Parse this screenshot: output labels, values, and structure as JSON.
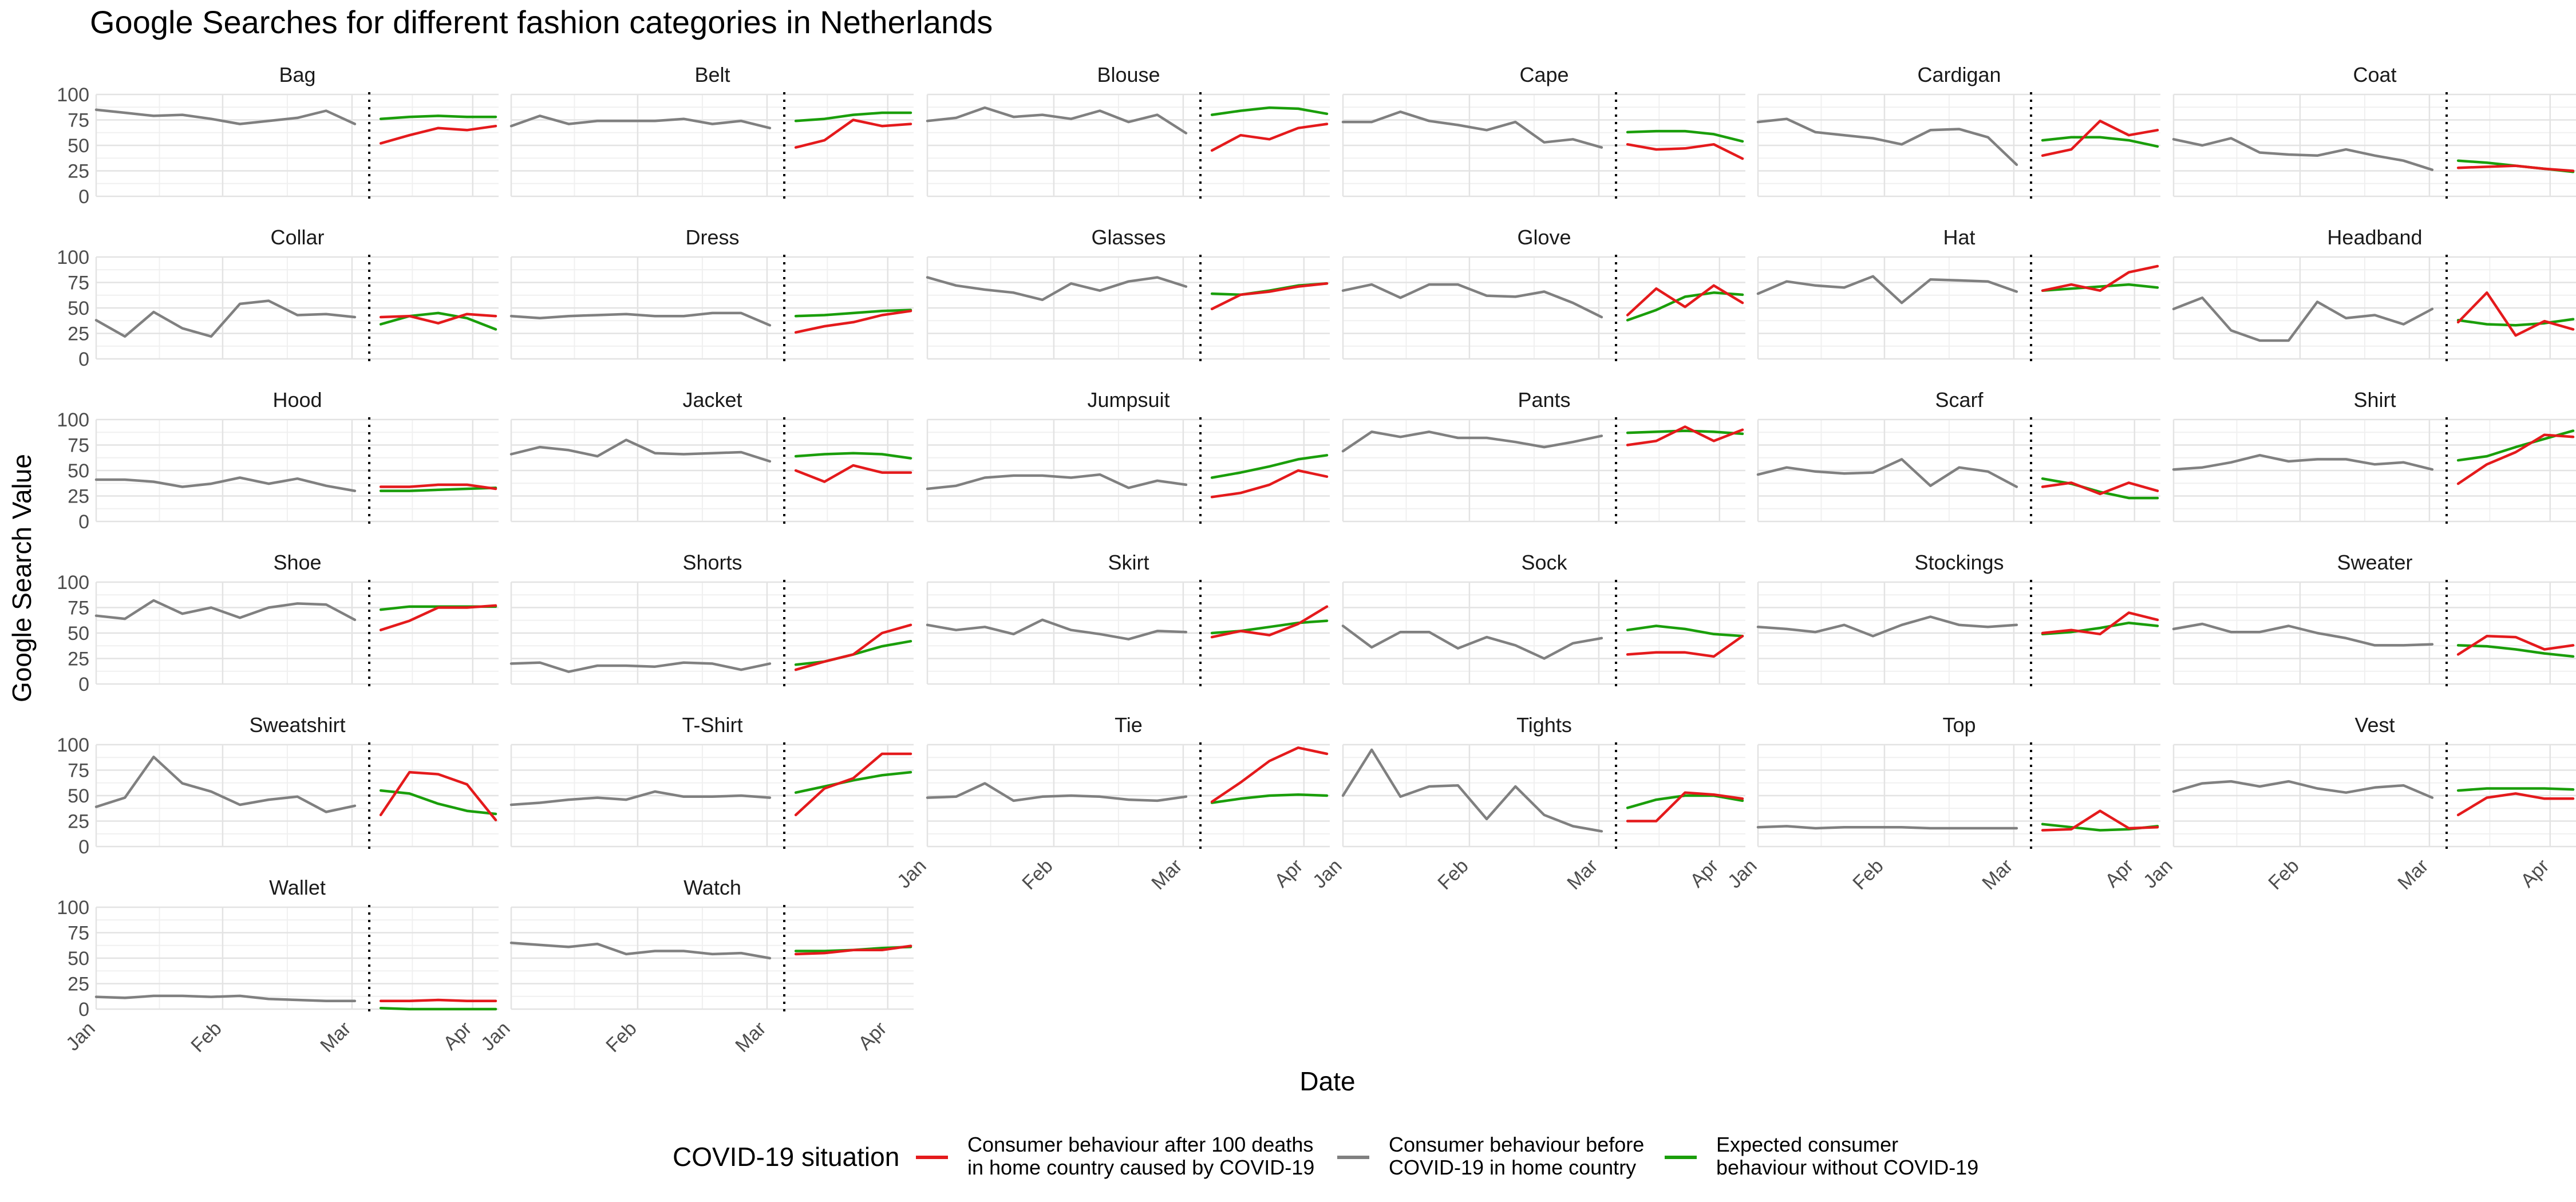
{
  "chart_data": {
    "type": "line",
    "title": "Google Searches for different fashion categories in Netherlands",
    "xlabel": "Date",
    "ylabel": "Google Search Value",
    "ylim": [
      0,
      100
    ],
    "y_ticks": [
      0,
      25,
      50,
      75,
      100
    ],
    "x_ticks": [
      "Jan",
      "Feb",
      "Mar",
      "Apr"
    ],
    "x_unit": "week",
    "x_range": [
      0,
      14
    ],
    "tick_positions": [
      0,
      4.4,
      8.9,
      13.1
    ],
    "divider_x": 9.5,
    "grid": true,
    "legend": {
      "title": "COVID-19 situation",
      "placement": "bottom",
      "entries": [
        {
          "key": "after",
          "label_lines": [
            "Consumer behaviour after 100 deaths",
            "in home country caused by COVID-19"
          ],
          "color": "#E41A1C"
        },
        {
          "key": "before",
          "label_lines": [
            "Consumer behaviour before",
            "COVID-19 in home country"
          ],
          "color": "#808080"
        },
        {
          "key": "expected",
          "label_lines": [
            "Expected consumer",
            "behaviour without COVID-19"
          ],
          "color": "#1A9E0A"
        }
      ]
    },
    "before_x": [
      0,
      1,
      2,
      3,
      4,
      5,
      6,
      7,
      8,
      9
    ],
    "after_x": [
      9.9,
      10.9,
      11.9,
      12.9,
      13.9
    ],
    "panels": [
      {
        "name": "Bag",
        "before": [
          85,
          82,
          79,
          80,
          76,
          71,
          74,
          77,
          84,
          71
        ],
        "after": [
          52,
          60,
          67,
          65,
          69
        ],
        "expected": [
          76,
          78,
          79,
          78,
          78
        ]
      },
      {
        "name": "Belt",
        "before": [
          69,
          79,
          71,
          74,
          74,
          74,
          76,
          71,
          74,
          67
        ],
        "after": [
          48,
          55,
          75,
          69,
          71
        ],
        "expected": [
          74,
          76,
          80,
          82,
          82
        ]
      },
      {
        "name": "Blouse",
        "before": [
          74,
          77,
          87,
          78,
          80,
          76,
          84,
          73,
          80,
          62
        ],
        "after": [
          45,
          60,
          56,
          67,
          71
        ],
        "expected": [
          80,
          84,
          87,
          86,
          81
        ]
      },
      {
        "name": "Cape",
        "before": [
          73,
          73,
          83,
          74,
          70,
          65,
          73,
          53,
          56,
          48
        ],
        "after": [
          51,
          46,
          47,
          51,
          37
        ],
        "expected": [
          63,
          64,
          64,
          61,
          54
        ]
      },
      {
        "name": "Cardigan",
        "before": [
          73,
          76,
          63,
          60,
          57,
          51,
          65,
          66,
          58,
          31
        ],
        "after": [
          40,
          46,
          74,
          60,
          65
        ],
        "expected": [
          55,
          58,
          58,
          55,
          49
        ]
      },
      {
        "name": "Coat",
        "before": [
          56,
          50,
          57,
          43,
          41,
          40,
          46,
          40,
          35,
          26
        ],
        "after": [
          28,
          29,
          30,
          27,
          25
        ],
        "expected": [
          35,
          33,
          30,
          27,
          24
        ]
      },
      {
        "name": "Collar",
        "before": [
          38,
          22,
          46,
          30,
          22,
          54,
          57,
          43,
          44,
          41
        ],
        "after": [
          41,
          42,
          35,
          44,
          42
        ],
        "expected": [
          34,
          42,
          45,
          40,
          29
        ]
      },
      {
        "name": "Dress",
        "before": [
          42,
          40,
          42,
          43,
          44,
          42,
          42,
          45,
          45,
          33
        ],
        "after": [
          26,
          32,
          36,
          43,
          47
        ],
        "expected": [
          42,
          43,
          45,
          47,
          48
        ]
      },
      {
        "name": "Glasses",
        "before": [
          80,
          72,
          68,
          65,
          58,
          74,
          67,
          76,
          80,
          71
        ],
        "after": [
          49,
          63,
          66,
          71,
          74
        ],
        "expected": [
          64,
          63,
          67,
          72,
          74
        ]
      },
      {
        "name": "Glove",
        "before": [
          67,
          73,
          60,
          73,
          73,
          62,
          61,
          66,
          55,
          41
        ],
        "after": [
          43,
          69,
          51,
          72,
          55
        ],
        "expected": [
          38,
          48,
          61,
          65,
          63
        ]
      },
      {
        "name": "Hat",
        "before": [
          64,
          76,
          72,
          70,
          81,
          55,
          78,
          77,
          76,
          66
        ],
        "after": [
          67,
          73,
          67,
          85,
          91
        ],
        "expected": [
          67,
          69,
          71,
          73,
          70
        ]
      },
      {
        "name": "Headband",
        "before": [
          49,
          60,
          28,
          18,
          18,
          56,
          40,
          43,
          34,
          49
        ],
        "after": [
          36,
          65,
          23,
          37,
          29
        ],
        "expected": [
          38,
          34,
          33,
          35,
          39
        ]
      },
      {
        "name": "Hood",
        "before": [
          41,
          41,
          39,
          34,
          37,
          43,
          37,
          42,
          35,
          30
        ],
        "after": [
          34,
          34,
          36,
          36,
          32
        ],
        "expected": [
          30,
          30,
          31,
          32,
          33
        ]
      },
      {
        "name": "Jacket",
        "before": [
          66,
          73,
          70,
          64,
          80,
          67,
          66,
          67,
          68,
          59
        ],
        "after": [
          50,
          39,
          55,
          48,
          48
        ],
        "expected": [
          64,
          66,
          67,
          66,
          62
        ]
      },
      {
        "name": "Jumpsuit",
        "before": [
          32,
          35,
          43,
          45,
          45,
          43,
          46,
          33,
          40,
          36
        ],
        "after": [
          24,
          28,
          36,
          50,
          44
        ],
        "expected": [
          43,
          48,
          54,
          61,
          65
        ]
      },
      {
        "name": "Pants",
        "before": [
          69,
          88,
          83,
          88,
          82,
          82,
          78,
          73,
          78,
          84
        ],
        "after": [
          75,
          79,
          93,
          79,
          90
        ],
        "expected": [
          87,
          88,
          89,
          88,
          86
        ]
      },
      {
        "name": "Scarf",
        "before": [
          46,
          53,
          49,
          47,
          48,
          61,
          35,
          53,
          49,
          34
        ],
        "after": [
          34,
          38,
          27,
          38,
          30
        ],
        "expected": [
          42,
          37,
          29,
          23,
          23
        ]
      },
      {
        "name": "Shirt",
        "before": [
          51,
          53,
          58,
          65,
          59,
          61,
          61,
          56,
          58,
          51
        ],
        "after": [
          37,
          56,
          68,
          85,
          83
        ],
        "expected": [
          60,
          64,
          73,
          81,
          89
        ]
      },
      {
        "name": "Shoe",
        "before": [
          67,
          64,
          82,
          69,
          75,
          65,
          75,
          79,
          78,
          63
        ],
        "after": [
          53,
          62,
          75,
          75,
          77
        ],
        "expected": [
          73,
          76,
          76,
          76,
          76
        ]
      },
      {
        "name": "Shorts",
        "before": [
          20,
          21,
          12,
          18,
          18,
          17,
          21,
          20,
          14,
          20
        ],
        "after": [
          14,
          22,
          29,
          50,
          58
        ],
        "expected": [
          19,
          22,
          29,
          37,
          42
        ]
      },
      {
        "name": "Skirt",
        "before": [
          58,
          53,
          56,
          49,
          63,
          53,
          49,
          44,
          52,
          51
        ],
        "after": [
          46,
          52,
          48,
          59,
          76
        ],
        "expected": [
          50,
          52,
          56,
          60,
          62
        ]
      },
      {
        "name": "Sock",
        "before": [
          57,
          36,
          51,
          51,
          35,
          46,
          38,
          25,
          40,
          45
        ],
        "after": [
          29,
          31,
          31,
          27,
          47
        ],
        "expected": [
          53,
          57,
          54,
          49,
          47
        ]
      },
      {
        "name": "Stockings",
        "before": [
          56,
          54,
          51,
          58,
          47,
          58,
          66,
          58,
          56,
          58
        ],
        "after": [
          50,
          53,
          49,
          70,
          63
        ],
        "expected": [
          49,
          51,
          55,
          60,
          57
        ]
      },
      {
        "name": "Sweater",
        "before": [
          54,
          59,
          51,
          51,
          57,
          50,
          45,
          38,
          38,
          39
        ],
        "after": [
          29,
          47,
          46,
          34,
          38
        ],
        "expected": [
          38,
          37,
          34,
          30,
          27
        ]
      },
      {
        "name": "Sweatshirt",
        "before": [
          39,
          48,
          88,
          62,
          54,
          41,
          46,
          49,
          34,
          40
        ],
        "after": [
          31,
          73,
          71,
          61,
          26
        ],
        "expected": [
          55,
          52,
          42,
          35,
          32
        ]
      },
      {
        "name": "T-Shirt",
        "before": [
          41,
          43,
          46,
          48,
          46,
          54,
          49,
          49,
          50,
          48
        ],
        "after": [
          31,
          57,
          67,
          91,
          91
        ],
        "expected": [
          53,
          59,
          65,
          70,
          73
        ]
      },
      {
        "name": "Tie",
        "before": [
          48,
          49,
          62,
          45,
          49,
          50,
          49,
          46,
          45,
          49
        ],
        "after": [
          44,
          63,
          84,
          97,
          91
        ],
        "expected": [
          43,
          47,
          50,
          51,
          50
        ]
      },
      {
        "name": "Tights",
        "before": [
          50,
          95,
          49,
          59,
          60,
          27,
          59,
          31,
          20,
          15
        ],
        "after": [
          25,
          25,
          53,
          51,
          47
        ],
        "expected": [
          38,
          46,
          50,
          50,
          45
        ]
      },
      {
        "name": "Top",
        "before": [
          19,
          20,
          18,
          19,
          19,
          19,
          18,
          18,
          18,
          18
        ],
        "after": [
          16,
          17,
          35,
          18,
          19
        ],
        "expected": [
          22,
          19,
          16,
          17,
          20
        ]
      },
      {
        "name": "Vest",
        "before": [
          54,
          62,
          64,
          59,
          64,
          57,
          53,
          58,
          60,
          48
        ],
        "after": [
          31,
          48,
          52,
          47,
          47
        ],
        "expected": [
          55,
          57,
          57,
          57,
          56
        ]
      },
      {
        "name": "Wallet",
        "before": [
          12,
          11,
          13,
          13,
          12,
          13,
          10,
          9,
          8,
          8
        ],
        "after": [
          8,
          8,
          9,
          8,
          8
        ],
        "expected": [
          1,
          0,
          0,
          0,
          0
        ]
      },
      {
        "name": "Watch",
        "before": [
          65,
          63,
          61,
          64,
          54,
          57,
          57,
          54,
          55,
          50
        ],
        "after": [
          54,
          55,
          58,
          58,
          62
        ],
        "expected": [
          57,
          57,
          58,
          60,
          61
        ]
      }
    ]
  }
}
